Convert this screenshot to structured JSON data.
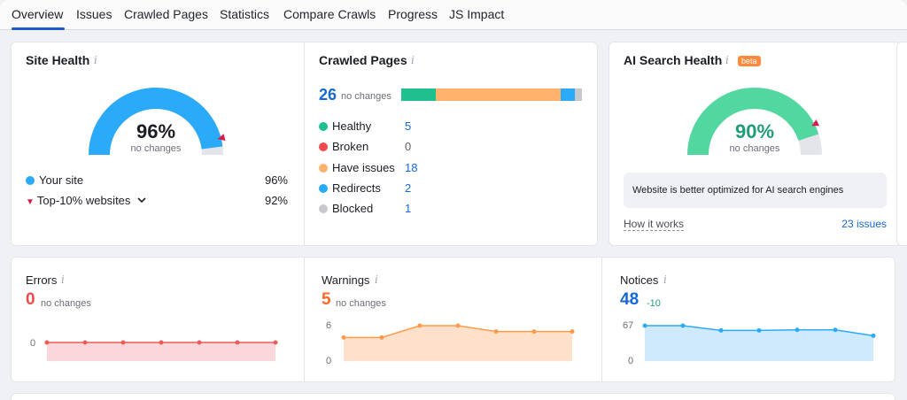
{
  "tabs": [
    "Overview",
    "Issues",
    "Crawled Pages",
    "Statistics",
    "Compare Crawls",
    "Progress",
    "JS Impact"
  ],
  "colors": {
    "accent_blue": "#2aaaf8",
    "red": "#f05a5a",
    "orange": "#ffb26b",
    "green": "#28c28a",
    "ai_green": "#52d7a0",
    "gray": "#d2d4da",
    "link": "#1568d6"
  },
  "site_health": {
    "title": "Site Health",
    "percent": "96%",
    "change": "no changes",
    "value": 96,
    "top10": 92,
    "your_site_label": "Your site",
    "your_site_value": "96%",
    "top10_label": "Top-10% websites",
    "top10_value": "92%"
  },
  "crawled_pages": {
    "title": "Crawled Pages",
    "total": "26",
    "change": "no changes",
    "items": [
      {
        "label": "Healthy",
        "count": "5",
        "color": "#1fbf8f",
        "value": 5
      },
      {
        "label": "Broken",
        "count": "0",
        "color": "#f04b4b",
        "value": 0
      },
      {
        "label": "Have issues",
        "count": "18",
        "color": "#ffb26b",
        "value": 18
      },
      {
        "label": "Redirects",
        "count": "2",
        "color": "#2aaaf8",
        "value": 2
      },
      {
        "label": "Blocked",
        "count": "1",
        "color": "#c7c9cf",
        "value": 1
      }
    ]
  },
  "ai_health": {
    "title": "AI Search Health",
    "badge": "beta",
    "percent": "90%",
    "change": "no changes",
    "value": 90,
    "marker": 85,
    "message": "Website is better optimized for AI search engines",
    "how_link": "How it works",
    "issues_link": "23 issues"
  },
  "errors": {
    "title": "Errors",
    "value": "0",
    "change": "no changes",
    "y_labels": [
      "0"
    ],
    "chart_data": {
      "type": "area",
      "values": [
        0,
        0,
        0,
        0,
        0,
        0,
        0
      ],
      "ylim": [
        0,
        1
      ]
    }
  },
  "warnings": {
    "title": "Warnings",
    "value": "5",
    "change": "no changes",
    "y_labels": [
      "6",
      "0"
    ],
    "chart_data": {
      "type": "area",
      "values": [
        4,
        4,
        6,
        6,
        5,
        5,
        5
      ],
      "ylim": [
        0,
        6
      ]
    }
  },
  "notices": {
    "title": "Notices",
    "value": "48",
    "change": "-10",
    "y_labels": [
      "67",
      "0"
    ],
    "chart_data": {
      "type": "area",
      "values": [
        67,
        67,
        58,
        58,
        59,
        59,
        48
      ],
      "ylim": [
        0,
        67
      ]
    }
  }
}
